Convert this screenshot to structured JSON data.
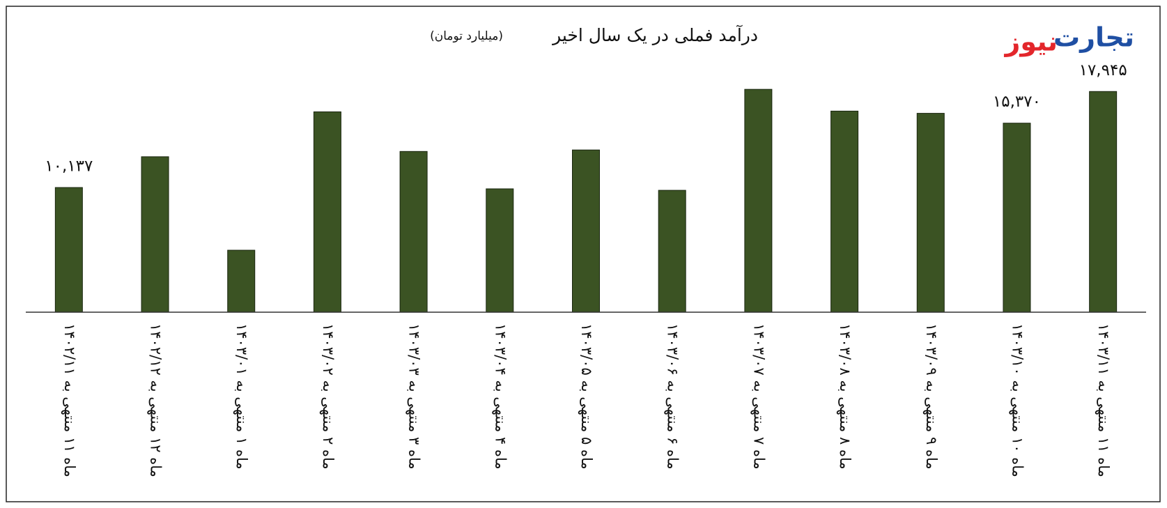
{
  "chart_data": {
    "type": "bar",
    "title": "درآمد فملی در یک سال اخیر",
    "subtitle": "(میلیارد تومان)",
    "categories": [
      "ماه ۱۱ منتهی به ۱۴۰۲/۱۱",
      "ماه ۱۲ منتهی به ۱۴۰۲/۱۲",
      "ماه ۱ منتهی به ۱۴۰۳/۰۱",
      "ماه ۲ منتهی به ۱۴۰۳/۰۲",
      "ماه ۳ منتهی به ۱۴۰۳/۰۳",
      "ماه ۴ منتهی به ۱۴۰۳/۰۴",
      "ماه ۵ منتهی به ۱۴۰۳/۰۵",
      "ماه ۶ منتهی به ۱۴۰۳/۰۶",
      "ماه ۷ منتهی به ۱۴۰۳/۰۷",
      "ماه ۸ منتهی به ۱۴۰۳/۰۸",
      "ماه ۹ منتهی به ۱۴۰۳/۰۹",
      "ماه ۱۰ منتهی به ۱۴۰۳/۱۰",
      "ماه ۱۱ منتهی به ۱۴۰۳/۱۱"
    ],
    "values": [
      10137,
      12640,
      5040,
      16290,
      13070,
      10030,
      13190,
      9910,
      18120,
      16350,
      16170,
      15370,
      17945
    ],
    "value_labels": [
      "۱۰,۱۳۷",
      null,
      null,
      null,
      null,
      null,
      null,
      null,
      null,
      null,
      null,
      "۱۵,۳۷۰",
      "۱۷,۹۴۵"
    ],
    "color": "#3b5323",
    "ylim": [
      0,
      20000
    ],
    "grid": false
  },
  "logo": {
    "first": "تجارت",
    "second": "نیوز"
  }
}
